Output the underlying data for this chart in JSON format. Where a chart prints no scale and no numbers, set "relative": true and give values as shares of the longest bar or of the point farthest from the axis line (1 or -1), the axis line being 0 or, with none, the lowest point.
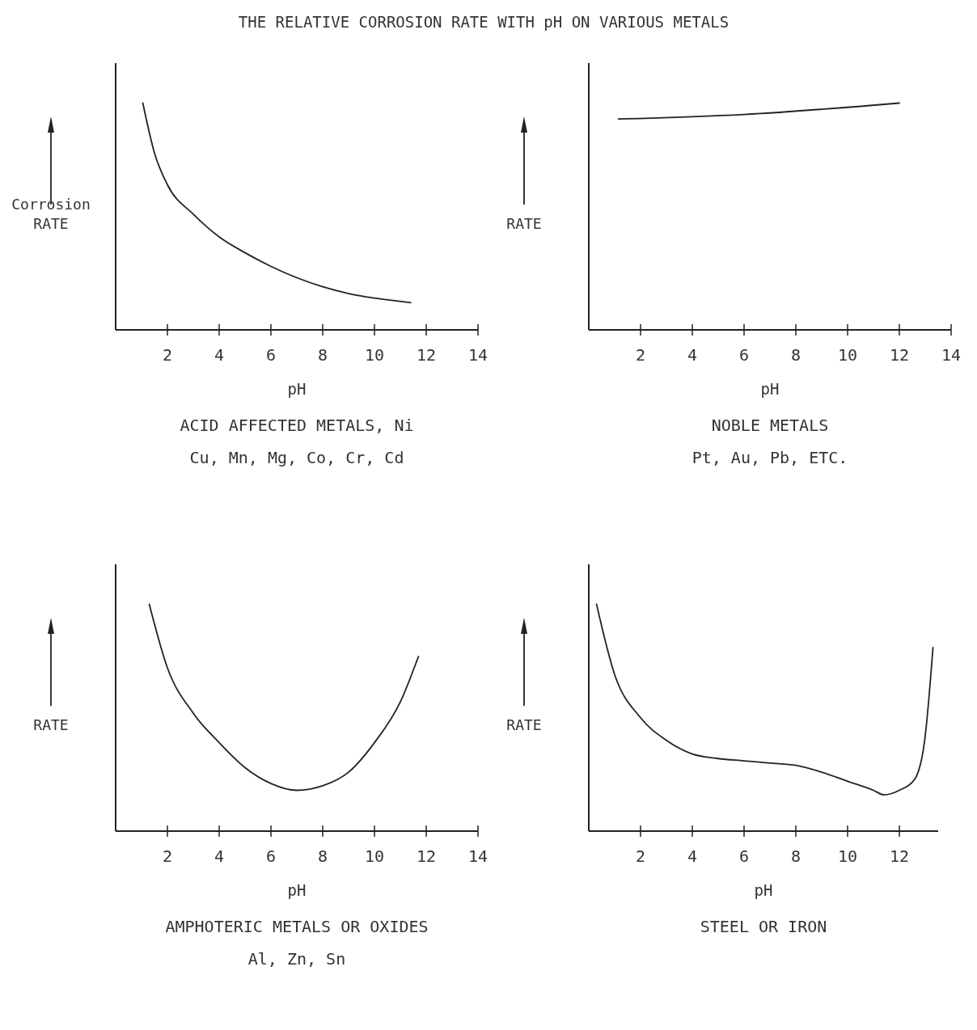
{
  "chart_data": [
    {
      "type": "line",
      "title": "THE RELATIVE CORROSION RATE WITH pH ON VARIOUS METALS",
      "xlabel": "pH",
      "ylabel": "Corrosion RATE",
      "relative": true,
      "xlim": [
        0,
        14
      ],
      "xticks": [
        2,
        4,
        6,
        8,
        10,
        12,
        14
      ],
      "annotations": [
        "ACID AFFECTED METALS, Ni",
        "Cu, Mn, Mg, Co, Cr, Cd"
      ],
      "series": [
        {
          "color": "#222222",
          "x": [
            1.05,
            1.5,
            2,
            3,
            4,
            5,
            6,
            7,
            8,
            9,
            10,
            11.4
          ],
          "values": [
            1.0,
            0.78,
            0.64,
            0.51,
            0.41,
            0.34,
            0.28,
            0.23,
            0.19,
            0.16,
            0.14,
            0.12
          ]
        }
      ]
    },
    {
      "type": "line",
      "xlabel": "pH",
      "ylabel": "RATE",
      "relative": true,
      "xlim": [
        0,
        14
      ],
      "xticks": [
        2,
        4,
        6,
        8,
        10,
        12,
        14
      ],
      "annotations": [
        "NOBLE METALS",
        "Pt, Au, Pb, ETC."
      ],
      "series": [
        {
          "color": "#222222",
          "x": [
            1.15,
            6,
            12
          ],
          "values": [
            0.93,
            0.95,
            1.0
          ]
        }
      ]
    },
    {
      "type": "line",
      "xlabel": "pH",
      "ylabel": "RATE",
      "relative": true,
      "xlim": [
        0,
        14
      ],
      "xticks": [
        2,
        4,
        6,
        8,
        10,
        12,
        14
      ],
      "annotations": [
        "AMPHOTERIC METALS OR OXIDES",
        "Al, Zn, Sn"
      ],
      "series": [
        {
          "color": "#222222",
          "x": [
            1.3,
            2,
            3,
            4,
            5,
            6,
            7,
            8,
            9,
            10,
            11,
            11.7
          ],
          "values": [
            1.0,
            0.72,
            0.52,
            0.39,
            0.28,
            0.21,
            0.18,
            0.2,
            0.26,
            0.39,
            0.57,
            0.77
          ]
        }
      ]
    },
    {
      "type": "line",
      "xlabel": "pH",
      "ylabel": "RATE",
      "relative": true,
      "xlim": [
        0,
        13.5
      ],
      "xticks": [
        2,
        4,
        6,
        8,
        10,
        12
      ],
      "annotations": [
        "STEEL OR IRON"
      ],
      "series": [
        {
          "color": "#222222",
          "x": [
            0.3,
            1,
            2,
            3,
            4,
            5,
            6,
            7,
            8,
            9,
            10,
            11,
            11.4,
            12,
            12.6,
            13,
            13.3
          ],
          "values": [
            1.0,
            0.69,
            0.5,
            0.4,
            0.34,
            0.32,
            0.31,
            0.3,
            0.29,
            0.26,
            0.22,
            0.18,
            0.16,
            0.18,
            0.23,
            0.42,
            0.81
          ]
        }
      ]
    }
  ]
}
